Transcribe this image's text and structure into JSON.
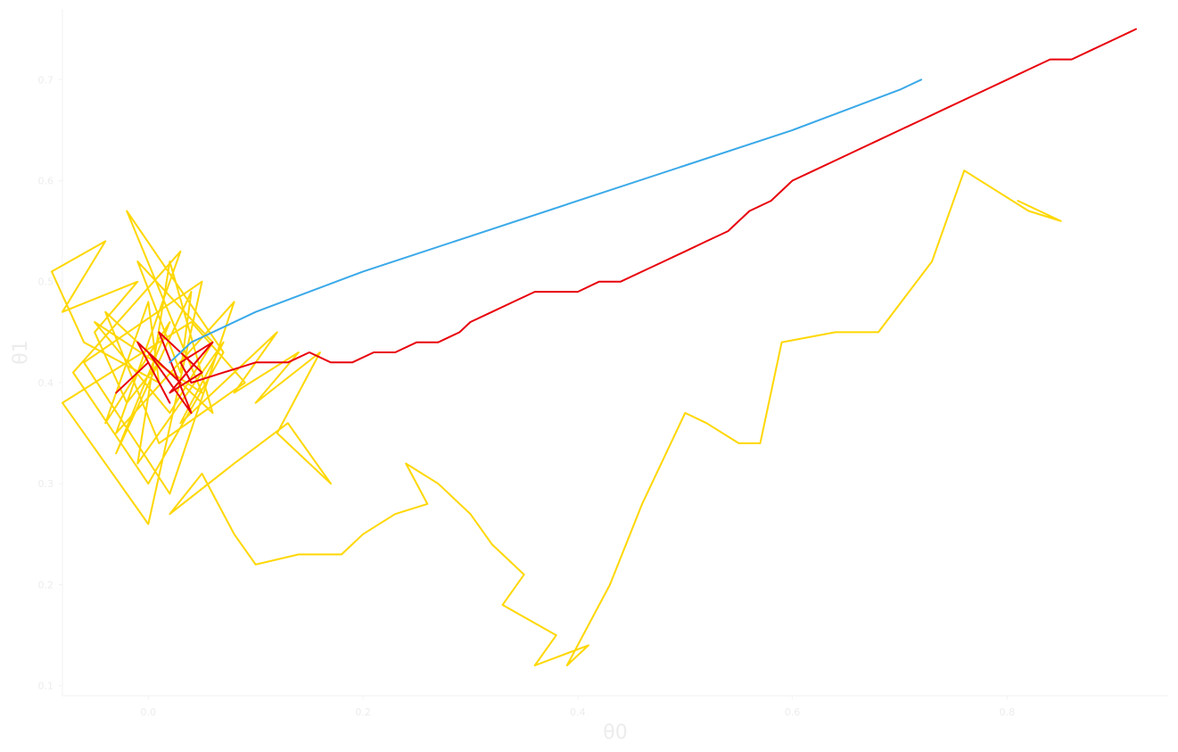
{
  "chart_data": {
    "type": "line",
    "xlabel": "θ0",
    "ylabel": "θ1",
    "xlim": [
      -0.08,
      0.95
    ],
    "ylim": [
      0.09,
      0.77
    ],
    "xticks": [
      0.0,
      0.2,
      0.4,
      0.6,
      0.8
    ],
    "xtick_labels": [
      "0.0",
      "0.2",
      "0.4",
      "0.6",
      "0.8"
    ],
    "yticks": [
      0.1,
      0.2,
      0.3,
      0.4,
      0.5,
      0.6,
      0.7
    ],
    "ytick_labels": [
      "0.1",
      "0.2",
      "0.3",
      "0.4",
      "0.5",
      "0.6",
      "0.7"
    ],
    "grid": false,
    "colors": {
      "blue": "#3aa9e8",
      "red": "#e8000b",
      "yellow": "#ffd700"
    },
    "series": [
      {
        "color": "#ffd700",
        "x": [
          0.01,
          -0.02,
          -0.05,
          -0.01,
          -0.08,
          -0.04,
          -0.09,
          -0.06,
          0.01,
          0.0,
          -0.04,
          0.02,
          -0.03,
          0.04,
          0.03,
          -0.01,
          0.06,
          0.02,
          -0.05,
          0.05,
          -0.02,
          0.07,
          0.0,
          -0.07,
          0.03,
          -0.03,
          0.08,
          0.02,
          -0.06,
          0.05,
          0.0,
          -0.08,
          0.04,
          0.09,
          0.01,
          -0.04,
          0.06,
          0.02,
          -0.01,
          0.07,
          0.03,
          0.12,
          0.08,
          0.14,
          0.1,
          0.16,
          0.12,
          0.17,
          0.13,
          0.08,
          0.02,
          0.05,
          0.08,
          0.1,
          0.14,
          0.18,
          0.2,
          0.23,
          0.26,
          0.24,
          0.27,
          0.3,
          0.32,
          0.35,
          0.33,
          0.38,
          0.36,
          0.41,
          0.39,
          0.43,
          0.46,
          0.5,
          0.52,
          0.55,
          0.57,
          0.59,
          0.64,
          0.68,
          0.73,
          0.76,
          0.82,
          0.85,
          0.81
        ],
        "y": [
          0.42,
          0.38,
          0.45,
          0.5,
          0.47,
          0.54,
          0.51,
          0.44,
          0.4,
          0.48,
          0.36,
          0.46,
          0.33,
          0.49,
          0.41,
          0.52,
          0.44,
          0.37,
          0.46,
          0.39,
          0.57,
          0.43,
          0.3,
          0.41,
          0.53,
          0.35,
          0.48,
          0.29,
          0.42,
          0.5,
          0.26,
          0.38,
          0.46,
          0.4,
          0.34,
          0.47,
          0.37,
          0.52,
          0.32,
          0.44,
          0.36,
          0.45,
          0.39,
          0.43,
          0.38,
          0.43,
          0.35,
          0.3,
          0.36,
          0.32,
          0.27,
          0.31,
          0.25,
          0.22,
          0.23,
          0.23,
          0.25,
          0.27,
          0.28,
          0.32,
          0.3,
          0.27,
          0.24,
          0.21,
          0.18,
          0.15,
          0.12,
          0.14,
          0.12,
          0.2,
          0.28,
          0.37,
          0.36,
          0.34,
          0.34,
          0.44,
          0.45,
          0.45,
          0.52,
          0.61,
          0.57,
          0.56,
          0.58
        ]
      },
      {
        "color": "#e8000b",
        "x": [
          -0.03,
          0.0,
          0.02,
          -0.01,
          0.03,
          0.0,
          0.04,
          0.01,
          0.05,
          0.02,
          0.06,
          0.03,
          0.04,
          0.07,
          0.1,
          0.13,
          0.15,
          0.17,
          0.19,
          0.21,
          0.23,
          0.25,
          0.27,
          0.29,
          0.3,
          0.32,
          0.34,
          0.36,
          0.38,
          0.4,
          0.42,
          0.44,
          0.46,
          0.48,
          0.5,
          0.52,
          0.54,
          0.56,
          0.58,
          0.6,
          0.62,
          0.64,
          0.66,
          0.68,
          0.7,
          0.72,
          0.74,
          0.76,
          0.78,
          0.8,
          0.82,
          0.84,
          0.86,
          0.88,
          0.9,
          0.92
        ],
        "y": [
          0.39,
          0.42,
          0.38,
          0.44,
          0.4,
          0.43,
          0.37,
          0.45,
          0.41,
          0.39,
          0.44,
          0.42,
          0.4,
          0.41,
          0.42,
          0.42,
          0.43,
          0.42,
          0.42,
          0.43,
          0.43,
          0.44,
          0.44,
          0.45,
          0.46,
          0.47,
          0.48,
          0.49,
          0.49,
          0.49,
          0.5,
          0.5,
          0.51,
          0.52,
          0.53,
          0.54,
          0.55,
          0.57,
          0.58,
          0.6,
          0.61,
          0.62,
          0.63,
          0.64,
          0.65,
          0.66,
          0.67,
          0.68,
          0.69,
          0.7,
          0.71,
          0.72,
          0.72,
          0.73,
          0.74,
          0.75
        ]
      },
      {
        "color": "#3aa9e8",
        "x": [
          0.02,
          0.04,
          0.1,
          0.2,
          0.3,
          0.4,
          0.5,
          0.6,
          0.7,
          0.72
        ],
        "y": [
          0.42,
          0.44,
          0.47,
          0.51,
          0.545,
          0.58,
          0.615,
          0.65,
          0.69,
          0.7
        ]
      }
    ]
  }
}
